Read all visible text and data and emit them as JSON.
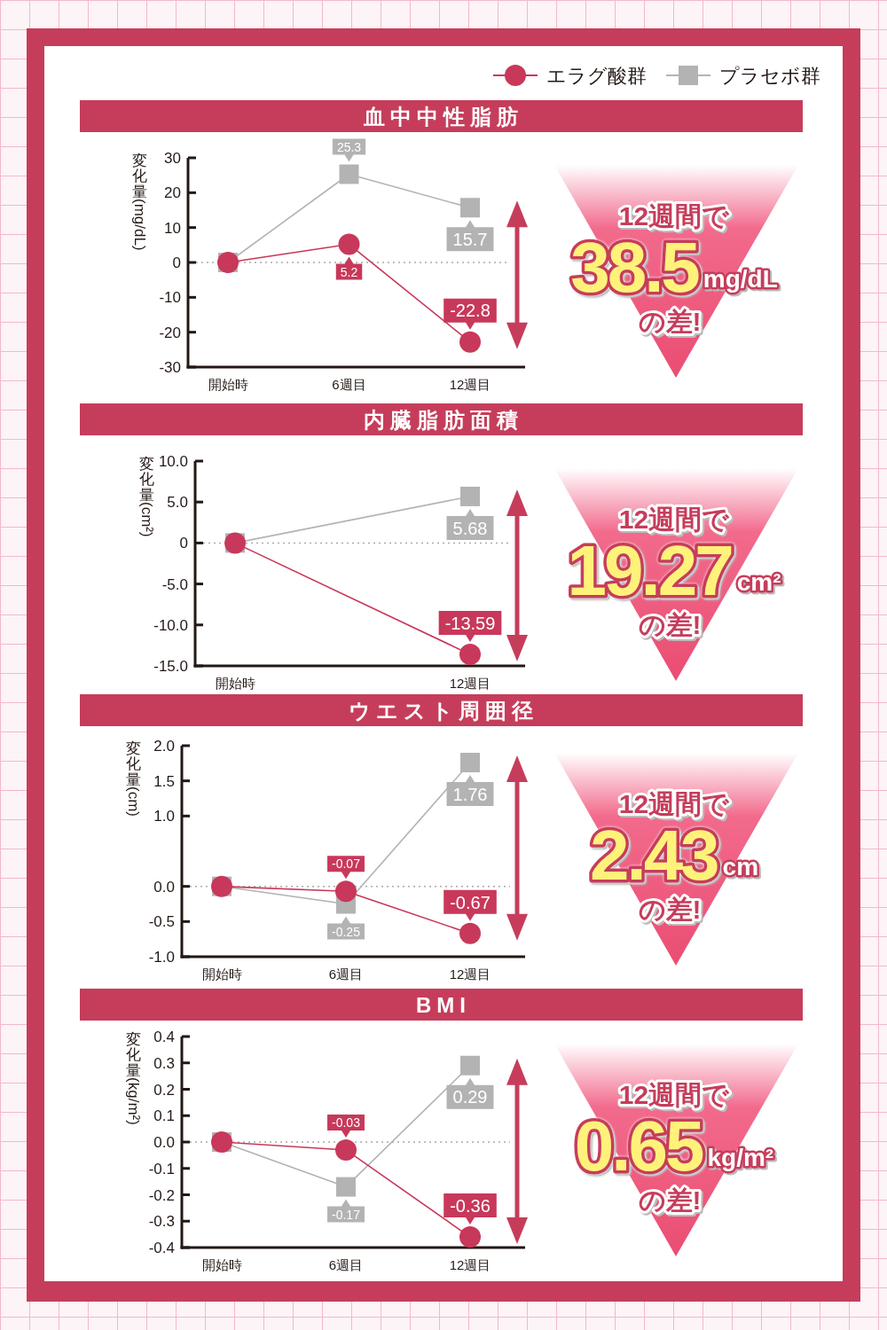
{
  "chart_data": [
    {
      "type": "line",
      "title": "血中中性脂肪",
      "categories": [
        "開始時",
        "6週目",
        "12週目"
      ],
      "ylabel": "変化量 (mg/dL)",
      "ylim": [
        -30,
        30
      ],
      "yticks": [
        -30,
        -20,
        -10,
        0,
        10,
        20,
        30
      ],
      "legend": "top right",
      "ref_lines": [
        {
          "axis": "y",
          "value": 0,
          "line_style": "dotted",
          "color": "#aaaaaa"
        }
      ],
      "series": [
        {
          "name": "エラグ酸群",
          "color": "#c8385a",
          "marker": "circle",
          "values": [
            0,
            5.2,
            -22.8
          ],
          "value_labels": [
            null,
            "5.2",
            "-22.8"
          ]
        },
        {
          "name": "プラセボ群",
          "color": "#b3b3b3",
          "marker": "square",
          "values": [
            0,
            25.3,
            15.7
          ],
          "value_labels": [
            null,
            "25.3",
            "15.7"
          ]
        }
      ],
      "annotations": [
        "12週間で",
        "38.5",
        "mg/dL",
        "の差!"
      ]
    },
    {
      "type": "line",
      "title": "内臓脂肪面積",
      "categories": [
        "開始時",
        "12週目"
      ],
      "ylabel": "変化量 (cm²)",
      "ylim": [
        -15,
        10
      ],
      "yticks": [
        {
          "value": -15,
          "label": "-15.0"
        },
        {
          "value": -10,
          "label": "-10.0"
        },
        {
          "value": -5,
          "label": "-5.0"
        },
        0,
        {
          "value": 5,
          "label": "5.0"
        },
        {
          "value": 10,
          "label": "10.0"
        }
      ],
      "ref_lines": [
        {
          "axis": "y",
          "value": 0,
          "line_style": "dotted",
          "color": "#aaaaaa"
        }
      ],
      "series": [
        {
          "color": "#c8385a",
          "marker": "circle",
          "values": [
            0,
            -13.59
          ],
          "value_labels": [
            null,
            "-13.59"
          ]
        },
        {
          "color": "#b3b3b3",
          "marker": "square",
          "values": [
            0,
            5.68
          ],
          "value_labels": [
            null,
            "5.68"
          ]
        }
      ],
      "annotations": [
        "12週間で",
        "19.27",
        "cm²",
        "の差!"
      ]
    },
    {
      "type": "line",
      "title": "ウエスト周囲径",
      "categories": [
        "開始時",
        "6週目",
        "12週目"
      ],
      "ylabel": "変化量 (cm)",
      "ylim": [
        -1,
        2
      ],
      "yticks": [
        {
          "value": -1,
          "label": "-1.0"
        },
        {
          "value": -0.5,
          "label": "-0.5"
        },
        {
          "value": 0,
          "label": "0.0"
        },
        {
          "value": 1,
          "label": "1.0"
        },
        {
          "value": 1.5,
          "label": "1.5"
        },
        {
          "value": 2,
          "label": "2.0"
        }
      ],
      "ref_lines": [
        {
          "axis": "y",
          "value": 0,
          "line_style": "dotted",
          "color": "#aaaaaa"
        }
      ],
      "series": [
        {
          "color": "#c8385a",
          "marker": "circle",
          "values": [
            0,
            -0.07,
            -0.67
          ],
          "value_labels": [
            null,
            "-0.07",
            "-0.67"
          ]
        },
        {
          "color": "#b3b3b3",
          "marker": "square",
          "values": [
            0,
            -0.25,
            1.76
          ],
          "value_labels": [
            null,
            "-0.25",
            "1.76"
          ]
        }
      ],
      "annotations": [
        "12週間で",
        "2.43",
        "cm",
        "の差!"
      ]
    },
    {
      "type": "line",
      "title": "BMI",
      "categories": [
        "開始時",
        "6週目",
        "12週目"
      ],
      "ylabel": "変化量 (kg/m²)",
      "ylim": [
        -0.4,
        0.4
      ],
      "yticks": [
        -0.4,
        -0.3,
        -0.2,
        -0.1,
        {
          "value": 0,
          "label": "0.0"
        },
        0.1,
        0.2,
        0.3,
        0.4
      ],
      "ref_lines": [
        {
          "axis": "y",
          "value": 0,
          "line_style": "dotted",
          "color": "#aaaaaa"
        }
      ],
      "series": [
        {
          "color": "#c8385a",
          "marker": "circle",
          "values": [
            0,
            -0.03,
            -0.36
          ],
          "value_labels": [
            null,
            "-0.03",
            "-0.36"
          ]
        },
        {
          "color": "#b3b3b3",
          "marker": "square",
          "values": [
            0,
            -0.17,
            0.29
          ],
          "value_labels": [
            null,
            "-0.17",
            "0.29"
          ]
        }
      ],
      "annotations": [
        "12週間で",
        "0.65",
        "kg/m²",
        "の差!"
      ]
    }
  ]
}
